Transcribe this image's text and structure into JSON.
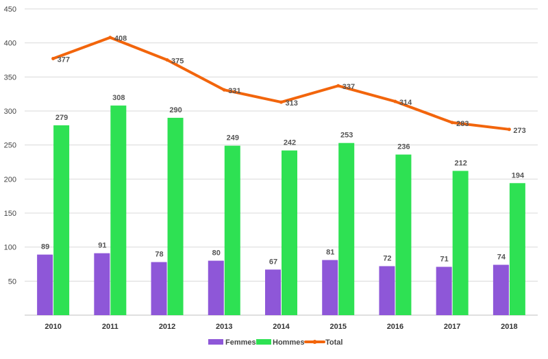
{
  "chart_data": {
    "type": "bar",
    "title": "",
    "xlabel": "",
    "ylabel": "",
    "categories": [
      "2010",
      "2011",
      "2012",
      "2013",
      "2014",
      "2015",
      "2016",
      "2017",
      "2018"
    ],
    "ylim": [
      0,
      450
    ],
    "yticks": [
      "50",
      "100",
      "150",
      "200",
      "250",
      "300",
      "350",
      "400",
      "450"
    ],
    "grid": true,
    "legend_position": "bottom",
    "series": [
      {
        "name": "Femmes",
        "type": "bar",
        "color": "#8e57d8",
        "values": [
          89,
          91,
          78,
          80,
          67,
          81,
          72,
          71,
          74
        ]
      },
      {
        "name": "Hommes",
        "type": "bar",
        "color": "#2ee153",
        "values": [
          279,
          308,
          290,
          249,
          242,
          253,
          236,
          212,
          194
        ]
      },
      {
        "name": "Total",
        "type": "line",
        "color": "#f2650c",
        "values": [
          377,
          408,
          375,
          331,
          313,
          337,
          314,
          283,
          273
        ]
      }
    ]
  }
}
